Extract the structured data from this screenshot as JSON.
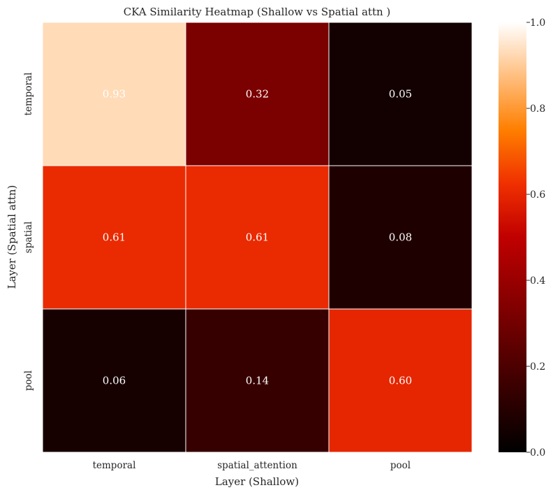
{
  "chart_data": {
    "type": "heatmap",
    "title": "CKA Similarity Heatmap (Shallow vs Spatial attn )",
    "xlabel": "Layer (Shallow)",
    "ylabel": "Layer (Spatial attn)",
    "x_categories": [
      "temporal",
      "spatial_attention",
      "pool"
    ],
    "y_categories": [
      "temporal",
      "spatial",
      "pool"
    ],
    "values": [
      [
        0.93,
        0.32,
        0.05
      ],
      [
        0.61,
        0.61,
        0.08
      ],
      [
        0.06,
        0.14,
        0.6
      ]
    ],
    "value_labels": [
      [
        "0.93",
        "0.32",
        "0.05"
      ],
      [
        "0.61",
        "0.61",
        "0.08"
      ],
      [
        "0.06",
        "0.14",
        "0.60"
      ]
    ],
    "colorbar": {
      "range": [
        0.0,
        1.0
      ],
      "ticks": [
        0.0,
        0.2,
        0.4,
        0.6,
        0.8,
        1.0
      ],
      "tick_labels": [
        "0.0",
        "0.2",
        "0.4",
        "0.6",
        "0.8",
        "1.0"
      ],
      "colormap": "gist_heat"
    },
    "annotations": true,
    "grid": false
  }
}
